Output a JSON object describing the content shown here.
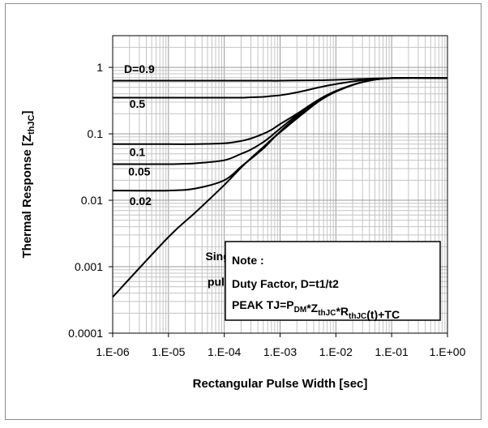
{
  "chart_data": {
    "type": "line",
    "title": "",
    "xlabel": "Rectangular Pulse Width [sec]",
    "ylabel": {
      "main": "Thermal Response [Z",
      "sub": "thJC",
      "end": "]"
    },
    "x_scale": "log",
    "y_scale": "log",
    "xlim": [
      1e-06,
      1
    ],
    "ylim": [
      0.0001,
      3
    ],
    "grid": true,
    "x_ticks": [
      {
        "value": 1e-06,
        "label": "1.E-06"
      },
      {
        "value": 1e-05,
        "label": "1.E-05"
      },
      {
        "value": 0.0001,
        "label": "1.E-04"
      },
      {
        "value": 0.001,
        "label": "1.E-03"
      },
      {
        "value": 0.01,
        "label": "1.E-02"
      },
      {
        "value": 0.1,
        "label": "1.E-01"
      },
      {
        "value": 1,
        "label": "1.E+00"
      }
    ],
    "y_ticks": [
      {
        "value": 1,
        "label": "1"
      },
      {
        "value": 0.1,
        "label": "0.1"
      },
      {
        "value": 0.01,
        "label": "0.01"
      },
      {
        "value": 0.001,
        "label": "0.001"
      },
      {
        "value": 0.0001,
        "label": "0.0001"
      }
    ],
    "x": [
      1e-06,
      1e-05,
      3e-05,
      0.0001,
      0.0002,
      0.0003,
      0.0005,
      0.0007,
      0.001,
      0.002,
      0.005,
      0.01,
      0.03,
      0.1,
      1
    ],
    "series": [
      {
        "name": "D=0.9",
        "values": [
          0.63,
          0.63,
          0.63,
          0.63,
          0.63,
          0.63,
          0.63,
          0.63,
          0.63,
          0.635,
          0.64,
          0.65,
          0.67,
          0.69,
          0.69
        ]
      },
      {
        "name": "0.5",
        "values": [
          0.35,
          0.35,
          0.35,
          0.35,
          0.35,
          0.355,
          0.36,
          0.37,
          0.38,
          0.42,
          0.5,
          0.56,
          0.64,
          0.69,
          0.69
        ]
      },
      {
        "name": "0.1",
        "values": [
          0.07,
          0.07,
          0.07,
          0.072,
          0.078,
          0.085,
          0.1,
          0.115,
          0.14,
          0.2,
          0.33,
          0.44,
          0.6,
          0.69,
          0.69
        ]
      },
      {
        "name": "0.05",
        "values": [
          0.035,
          0.035,
          0.036,
          0.04,
          0.05,
          0.058,
          0.075,
          0.093,
          0.12,
          0.19,
          0.32,
          0.44,
          0.6,
          0.69,
          0.69
        ]
      },
      {
        "name": "0.02",
        "values": [
          0.014,
          0.014,
          0.015,
          0.02,
          0.032,
          0.042,
          0.06,
          0.08,
          0.108,
          0.18,
          0.32,
          0.44,
          0.6,
          0.69,
          0.69
        ]
      },
      {
        "name": "Single pulse",
        "values": [
          0.00035,
          0.0028,
          0.0065,
          0.017,
          0.031,
          0.043,
          0.063,
          0.082,
          0.105,
          0.17,
          0.31,
          0.43,
          0.6,
          0.69,
          0.69
        ]
      }
    ],
    "curve_labels": [
      {
        "text": "D=0.9",
        "x": 1.6e-06,
        "y": 0.82
      },
      {
        "text": "0.5",
        "x": 2e-06,
        "y": 0.245
      },
      {
        "text": "0.1",
        "x": 2e-06,
        "y": 0.046
      },
      {
        "text": "0.05",
        "x": 1.9e-06,
        "y": 0.0235
      },
      {
        "text": "0.02",
        "x": 2e-06,
        "y": 0.0085
      },
      {
        "text": "Single",
        "x": 4.6e-05,
        "y": 0.00125
      },
      {
        "text": "pulse",
        "x": 5e-05,
        "y": 0.00052
      }
    ],
    "note": {
      "line1": "Note :",
      "line2": "Duty Factor, D=t1/t2",
      "line3": [
        {
          "t": "PEAK TJ=P",
          "sub": false
        },
        {
          "t": "DM",
          "sub": true
        },
        {
          "t": "*Z",
          "sub": false
        },
        {
          "t": "thJC",
          "sub": true
        },
        {
          "t": "*R",
          "sub": false
        },
        {
          "t": "thJC",
          "sub": true
        },
        {
          "t": "(t)+TC",
          "sub": false
        }
      ]
    }
  }
}
